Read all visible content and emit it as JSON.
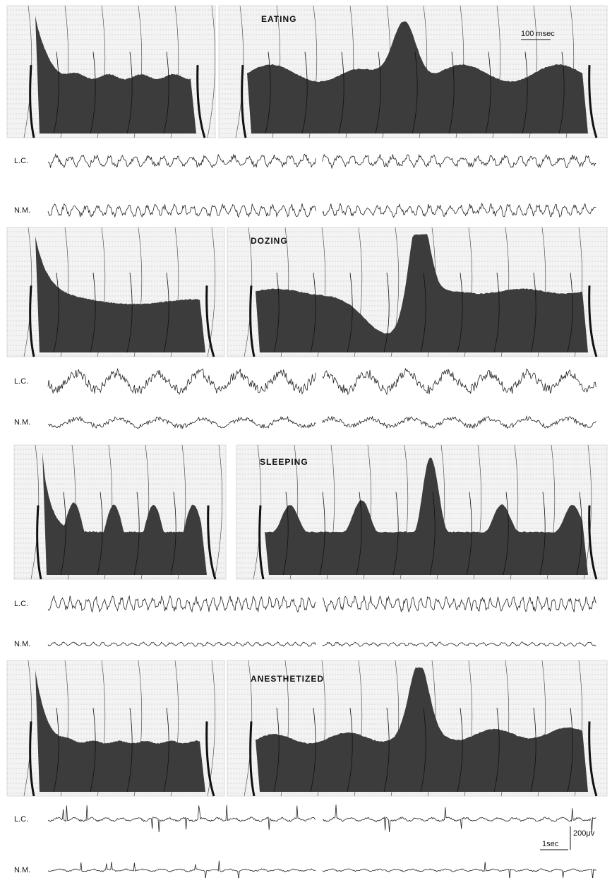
{
  "panels": [
    {
      "state": "EATING",
      "traces": [
        "L.C.",
        "N.M."
      ]
    },
    {
      "state": "DOZING",
      "traces": [
        "L.C.",
        "N.M."
      ]
    },
    {
      "state": "SLEEPING",
      "traces": [
        "L.C.",
        "N.M."
      ]
    },
    {
      "state": "ANESTHETIZED",
      "traces": [
        "L.C.",
        "N.M."
      ]
    }
  ],
  "scale": {
    "time_top": "100 msec",
    "time": "1sec",
    "amplitude": "200μv"
  }
}
